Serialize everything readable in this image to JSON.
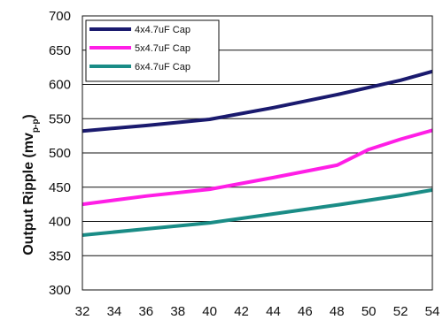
{
  "chart_data": {
    "type": "line",
    "ylabel": "Output Ripple (mv",
    "ylabel_subscript": "p-p",
    "ylabel_close": ")",
    "xlabel": "",
    "x": [
      32,
      34,
      36,
      38,
      40,
      42,
      44,
      46,
      48,
      50,
      52,
      54
    ],
    "x_tick_labels": [
      "32",
      "34",
      "36",
      "38",
      "40",
      "42",
      "44",
      "46",
      "48",
      "50",
      "52",
      "54"
    ],
    "xlim": [
      32,
      54
    ],
    "ylim": [
      300,
      700
    ],
    "y_tick_labels": [
      "300",
      "350",
      "400",
      "450",
      "500",
      "550",
      "600",
      "650",
      "700"
    ],
    "y_ticks": [
      300,
      350,
      400,
      450,
      500,
      550,
      600,
      650,
      700
    ],
    "grid": "horizontal",
    "legend_position": "top-left",
    "series": [
      {
        "name": "4x4.7uF Cap",
        "color": "#1a1a6e",
        "points": [
          [
            32,
            532
          ],
          [
            36,
            540
          ],
          [
            40,
            549
          ],
          [
            44,
            566
          ],
          [
            48,
            585
          ],
          [
            52,
            606
          ],
          [
            54,
            619
          ]
        ]
      },
      {
        "name": "5x4.7uF Cap",
        "color": "#ff1ee6",
        "points": [
          [
            32,
            425
          ],
          [
            36,
            437
          ],
          [
            40,
            447
          ],
          [
            44,
            464
          ],
          [
            48,
            482
          ],
          [
            50,
            505
          ],
          [
            52,
            520
          ],
          [
            54,
            533
          ]
        ]
      },
      {
        "name": "6x4.7uF Cap",
        "color": "#1a8c86",
        "points": [
          [
            32,
            380
          ],
          [
            36,
            389
          ],
          [
            40,
            398
          ],
          [
            44,
            411
          ],
          [
            48,
            424
          ],
          [
            52,
            438
          ],
          [
            54,
            446
          ]
        ]
      }
    ]
  }
}
